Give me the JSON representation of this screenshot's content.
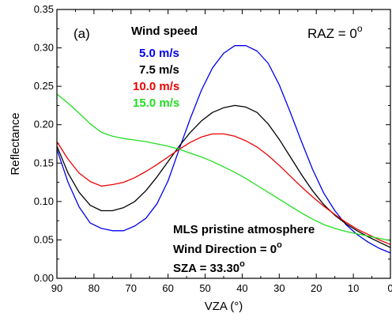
{
  "chart_data": {
    "type": "line",
    "panel_label": "(a)",
    "xlabel": "VZA (°)",
    "ylabel": "Reflectance",
    "xlim": [
      90,
      0
    ],
    "x_reversed": true,
    "ylim": [
      0.0,
      0.35
    ],
    "xticks": [
      "90",
      "80",
      "70",
      "60",
      "50",
      "40",
      "30",
      "20",
      "10",
      "0"
    ],
    "yticks": [
      "0.00",
      "0.05",
      "0.10",
      "0.15",
      "0.20",
      "0.25",
      "0.30",
      "0.35"
    ],
    "legend_title": "Wind speed",
    "legend_position": "top-left",
    "raz_label": "RAZ = 0",
    "raz_superscript": "o",
    "notes": {
      "line1": "MLS pristine atmosphere",
      "line2": "Wind Direction = 0",
      "line2_sup": "o",
      "line3": "SZA  =  33.30",
      "line3_sup": "o"
    },
    "series": [
      {
        "name": "5.0 m/s",
        "color": "#0000ee",
        "points": [
          [
            90,
            0.168
          ],
          [
            87,
            0.125
          ],
          [
            84,
            0.093
          ],
          [
            81,
            0.072
          ],
          [
            78,
            0.065
          ],
          [
            75,
            0.062
          ],
          [
            72,
            0.062
          ],
          [
            69,
            0.068
          ],
          [
            66,
            0.078
          ],
          [
            63,
            0.097
          ],
          [
            60,
            0.127
          ],
          [
            57,
            0.168
          ],
          [
            54,
            0.208
          ],
          [
            51,
            0.245
          ],
          [
            48,
            0.274
          ],
          [
            45,
            0.293
          ],
          [
            42,
            0.303
          ],
          [
            39,
            0.303
          ],
          [
            36,
            0.296
          ],
          [
            33,
            0.28
          ],
          [
            30,
            0.252
          ],
          [
            27,
            0.216
          ],
          [
            24,
            0.178
          ],
          [
            21,
            0.142
          ],
          [
            18,
            0.111
          ],
          [
            15,
            0.088
          ],
          [
            12,
            0.07
          ],
          [
            9,
            0.057
          ],
          [
            6,
            0.047
          ],
          [
            3,
            0.039
          ],
          [
            0,
            0.033
          ]
        ]
      },
      {
        "name": "7.5 m/s",
        "color": "#000000",
        "points": [
          [
            90,
            0.172
          ],
          [
            87,
            0.137
          ],
          [
            84,
            0.112
          ],
          [
            81,
            0.095
          ],
          [
            78,
            0.088
          ],
          [
            75,
            0.088
          ],
          [
            72,
            0.092
          ],
          [
            69,
            0.1
          ],
          [
            66,
            0.114
          ],
          [
            63,
            0.132
          ],
          [
            60,
            0.152
          ],
          [
            57,
            0.172
          ],
          [
            54,
            0.19
          ],
          [
            51,
            0.205
          ],
          [
            48,
            0.216
          ],
          [
            45,
            0.222
          ],
          [
            42,
            0.225
          ],
          [
            39,
            0.223
          ],
          [
            36,
            0.216
          ],
          [
            33,
            0.201
          ],
          [
            30,
            0.181
          ],
          [
            27,
            0.158
          ],
          [
            24,
            0.135
          ],
          [
            21,
            0.114
          ],
          [
            18,
            0.096
          ],
          [
            15,
            0.082
          ],
          [
            12,
            0.071
          ],
          [
            9,
            0.062
          ],
          [
            6,
            0.054
          ],
          [
            3,
            0.047
          ],
          [
            0,
            0.04
          ]
        ]
      },
      {
        "name": "10.0 m/s",
        "color": "#ee0000",
        "points": [
          [
            90,
            0.178
          ],
          [
            87,
            0.155
          ],
          [
            84,
            0.137
          ],
          [
            81,
            0.126
          ],
          [
            78,
            0.12
          ],
          [
            75,
            0.122
          ],
          [
            72,
            0.125
          ],
          [
            69,
            0.131
          ],
          [
            66,
            0.139
          ],
          [
            63,
            0.148
          ],
          [
            60,
            0.158
          ],
          [
            57,
            0.168
          ],
          [
            54,
            0.177
          ],
          [
            51,
            0.184
          ],
          [
            48,
            0.188
          ],
          [
            45,
            0.188
          ],
          [
            42,
            0.185
          ],
          [
            39,
            0.179
          ],
          [
            36,
            0.171
          ],
          [
            33,
            0.16
          ],
          [
            30,
            0.147
          ],
          [
            27,
            0.133
          ],
          [
            24,
            0.119
          ],
          [
            21,
            0.106
          ],
          [
            18,
            0.094
          ],
          [
            15,
            0.083
          ],
          [
            12,
            0.073
          ],
          [
            9,
            0.064
          ],
          [
            6,
            0.057
          ],
          [
            3,
            0.05
          ],
          [
            0,
            0.044
          ]
        ]
      },
      {
        "name": "15.0 m/s",
        "color": "#22dd22",
        "points": [
          [
            90,
            0.24
          ],
          [
            87,
            0.228
          ],
          [
            84,
            0.215
          ],
          [
            81,
            0.201
          ],
          [
            78,
            0.19
          ],
          [
            75,
            0.185
          ],
          [
            72,
            0.182
          ],
          [
            69,
            0.18
          ],
          [
            66,
            0.178
          ],
          [
            63,
            0.175
          ],
          [
            60,
            0.172
          ],
          [
            57,
            0.168
          ],
          [
            54,
            0.163
          ],
          [
            51,
            0.158
          ],
          [
            48,
            0.152
          ],
          [
            45,
            0.145
          ],
          [
            42,
            0.138
          ],
          [
            39,
            0.13
          ],
          [
            36,
            0.121
          ],
          [
            33,
            0.112
          ],
          [
            30,
            0.103
          ],
          [
            27,
            0.094
          ],
          [
            24,
            0.085
          ],
          [
            21,
            0.077
          ],
          [
            18,
            0.07
          ],
          [
            15,
            0.065
          ],
          [
            12,
            0.061
          ],
          [
            9,
            0.058
          ],
          [
            6,
            0.055
          ],
          [
            3,
            0.052
          ],
          [
            0,
            0.049
          ]
        ]
      }
    ]
  }
}
